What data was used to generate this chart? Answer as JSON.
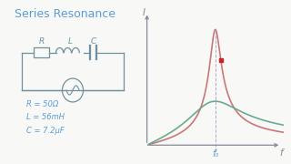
{
  "title": "Series Resonance",
  "title_color": "#5b9bd5",
  "title_fontsize": 9,
  "bg_color": "#f8f8f6",
  "circuit_color": "#7090a0",
  "text_color": "#5b9bd5",
  "label_R": "R",
  "label_L": "L",
  "label_C": "C",
  "param1": "R = 50Ω",
  "param2": "L = 56mH",
  "param3": "C = 7.2μF",
  "axis_color": "#888899",
  "curve_color_high": "#c87878",
  "curve_color_low": "#6aaa90",
  "resonance_label": "f₀",
  "freq_label": "f",
  "current_label": "I",
  "dot_color": "#cc2222",
  "dashed_color": "#9999bb",
  "f0": 1.4,
  "Q_high": 6.0,
  "Q_low": 1.3,
  "I_low_scale": 0.38,
  "xmin": 0.0,
  "xmax": 2.8,
  "ymin": -0.05,
  "ymax": 1.2
}
